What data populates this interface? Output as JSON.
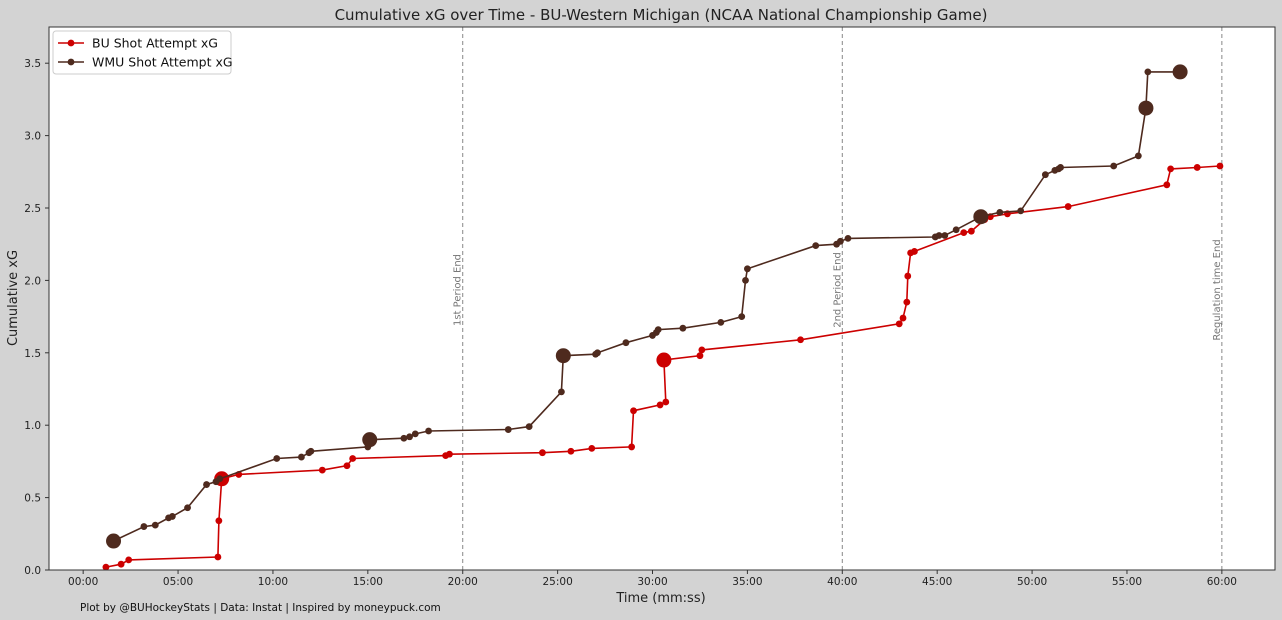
{
  "chart_data": {
    "type": "line",
    "title": "Cumulative xG over Time - BU-Western Michigan (NCAA National Championship Game)",
    "xlabel": "Time (mm:ss)",
    "ylabel": "Cumulative xG",
    "xlim": [
      -1.8,
      62.8
    ],
    "ylim": [
      0,
      3.75
    ],
    "x_ticks": [
      0,
      5,
      10,
      15,
      20,
      25,
      30,
      35,
      40,
      45,
      50,
      55,
      60
    ],
    "x_tick_labels": [
      "00:00",
      "05:00",
      "10:00",
      "15:00",
      "20:00",
      "25:00",
      "30:00",
      "35:00",
      "40:00",
      "45:00",
      "50:00",
      "55:00",
      "60:00"
    ],
    "y_ticks": [
      0.0,
      0.5,
      1.0,
      1.5,
      2.0,
      2.5,
      3.0,
      3.5
    ],
    "y_tick_labels": [
      "0.0",
      "0.5",
      "1.0",
      "1.5",
      "2.0",
      "2.5",
      "3.0",
      "3.5"
    ],
    "grid": false,
    "legend_position": "top-left",
    "vertical_lines": [
      {
        "x": 20,
        "label": "1st Period End"
      },
      {
        "x": 40,
        "label": "2nd Period End"
      },
      {
        "x": 60,
        "label": "Regulation time End"
      }
    ],
    "series": [
      {
        "name": "BU Shot Attempt xG",
        "color": "#cc0000",
        "points": [
          [
            1.2,
            0.02
          ],
          [
            2.0,
            0.04
          ],
          [
            2.4,
            0.07
          ],
          [
            7.1,
            0.09
          ],
          [
            7.15,
            0.34
          ],
          [
            7.3,
            0.63
          ],
          [
            8.2,
            0.66
          ],
          [
            12.6,
            0.69
          ],
          [
            13.9,
            0.72
          ],
          [
            14.2,
            0.77
          ],
          [
            19.1,
            0.79
          ],
          [
            19.3,
            0.8
          ],
          [
            24.2,
            0.81
          ],
          [
            25.7,
            0.82
          ],
          [
            26.8,
            0.84
          ],
          [
            28.9,
            0.85
          ],
          [
            29.0,
            1.1
          ],
          [
            30.4,
            1.14
          ],
          [
            30.7,
            1.16
          ],
          [
            30.6,
            1.45
          ],
          [
            32.5,
            1.48
          ],
          [
            32.6,
            1.52
          ],
          [
            37.8,
            1.59
          ],
          [
            43.0,
            1.7
          ],
          [
            43.2,
            1.74
          ],
          [
            43.4,
            1.85
          ],
          [
            43.45,
            2.03
          ],
          [
            43.6,
            2.19
          ],
          [
            43.8,
            2.2
          ],
          [
            46.4,
            2.33
          ],
          [
            46.8,
            2.34
          ],
          [
            47.5,
            2.42
          ],
          [
            47.8,
            2.44
          ],
          [
            48.7,
            2.46
          ],
          [
            51.9,
            2.51
          ],
          [
            57.1,
            2.66
          ],
          [
            57.3,
            2.77
          ],
          [
            58.7,
            2.78
          ],
          [
            59.9,
            2.79
          ]
        ],
        "goals": [
          [
            7.3,
            0.63
          ],
          [
            30.6,
            1.45
          ]
        ]
      },
      {
        "name": "WMU Shot Attempt xG",
        "color": "#4e2a1e",
        "points": [
          [
            1.6,
            0.2
          ],
          [
            3.2,
            0.3
          ],
          [
            3.8,
            0.31
          ],
          [
            4.5,
            0.36
          ],
          [
            4.7,
            0.37
          ],
          [
            5.5,
            0.43
          ],
          [
            6.5,
            0.59
          ],
          [
            7.0,
            0.61
          ],
          [
            7.2,
            0.63
          ],
          [
            10.2,
            0.77
          ],
          [
            11.5,
            0.78
          ],
          [
            11.9,
            0.81
          ],
          [
            12.0,
            0.82
          ],
          [
            15.0,
            0.85
          ],
          [
            15.1,
            0.9
          ],
          [
            16.9,
            0.91
          ],
          [
            17.2,
            0.92
          ],
          [
            17.5,
            0.94
          ],
          [
            18.2,
            0.96
          ],
          [
            22.4,
            0.97
          ],
          [
            23.5,
            0.99
          ],
          [
            25.2,
            1.23
          ],
          [
            25.3,
            1.48
          ],
          [
            27.0,
            1.49
          ],
          [
            27.1,
            1.5
          ],
          [
            28.6,
            1.57
          ],
          [
            30.0,
            1.62
          ],
          [
            30.2,
            1.64
          ],
          [
            30.3,
            1.66
          ],
          [
            31.6,
            1.67
          ],
          [
            33.6,
            1.71
          ],
          [
            34.7,
            1.75
          ],
          [
            34.9,
            2.0
          ],
          [
            35.0,
            2.08
          ],
          [
            38.6,
            2.24
          ],
          [
            39.7,
            2.25
          ],
          [
            39.9,
            2.27
          ],
          [
            40.3,
            2.29
          ],
          [
            44.9,
            2.3
          ],
          [
            45.1,
            2.31
          ],
          [
            45.4,
            2.31
          ],
          [
            46.0,
            2.35
          ],
          [
            47.3,
            2.44
          ],
          [
            48.3,
            2.47
          ],
          [
            49.4,
            2.48
          ],
          [
            50.7,
            2.73
          ],
          [
            51.2,
            2.76
          ],
          [
            51.4,
            2.77
          ],
          [
            51.5,
            2.78
          ],
          [
            54.3,
            2.79
          ],
          [
            55.6,
            2.86
          ],
          [
            56.0,
            3.19
          ],
          [
            56.1,
            3.44
          ],
          [
            57.8,
            3.44
          ]
        ],
        "goals": [
          [
            1.6,
            0.2
          ],
          [
            15.1,
            0.9
          ],
          [
            25.3,
            1.48
          ],
          [
            47.3,
            2.44
          ],
          [
            56.0,
            3.19
          ],
          [
            57.8,
            3.44
          ]
        ]
      }
    ]
  },
  "credit": "Plot by @BUHockeyStats | Data: Instat | Inspired by moneypuck.com"
}
